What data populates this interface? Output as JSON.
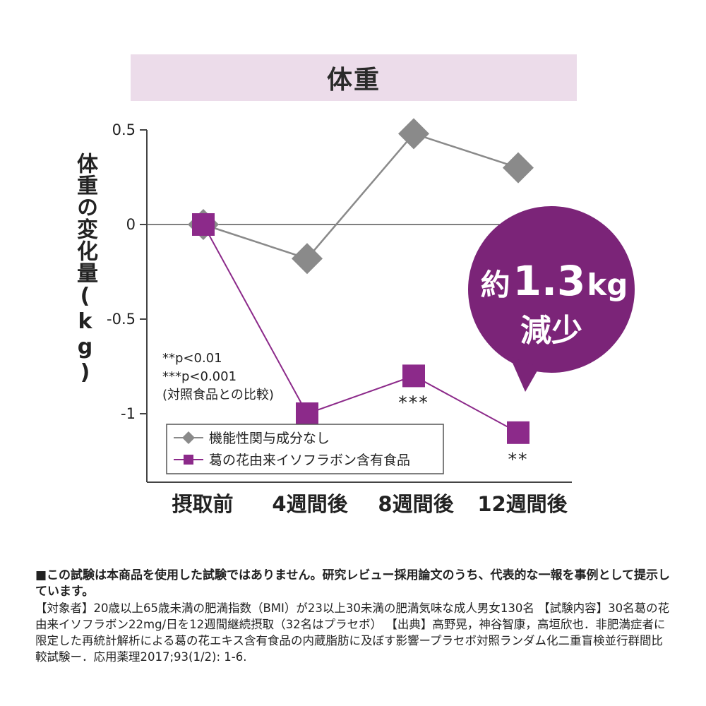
{
  "title": "体重",
  "ylabel": "体重の変化量(kg)",
  "colors": {
    "control": "#8a8a8a",
    "treatment": "#8c2a8a",
    "callout": "#7b2478",
    "title_band": "#ecdcea"
  },
  "chart_data": {
    "type": "line",
    "title": "体重",
    "xlabel": "",
    "ylabel": "体重の変化量(kg)",
    "categories": [
      "摂取前",
      "4週間後",
      "8週間後",
      "12週間後"
    ],
    "ylim": [
      -1.55,
      0.5
    ],
    "yticks": [
      0.5,
      0,
      -0.5,
      -1
    ],
    "ytick_labels": [
      "0.5",
      "0",
      "-0.5",
      "-1"
    ],
    "grid": false,
    "legend_position": "bottom-left",
    "series": [
      {
        "name": "機能性関与成分なし",
        "values": [
          0,
          -0.18,
          0.48,
          0.3
        ],
        "marker": "diamond",
        "color": "#8a8a8a"
      },
      {
        "name": "葛の花由来イソフラボン含有食品",
        "values": [
          0,
          -1.0,
          -0.8,
          -1.1
        ],
        "marker": "square",
        "color": "#8c2a8a"
      }
    ],
    "significance": [
      {
        "category": "4週間後",
        "label": "**"
      },
      {
        "category": "8週間後",
        "label": "***"
      },
      {
        "category": "12週間後",
        "label": "**"
      }
    ],
    "notes": [
      "**p<0.01",
      "***p<0.001",
      "(対照食品との比較)"
    ],
    "callout": {
      "line1_prefix": "約",
      "line1_value": "1.3",
      "line1_unit": "kg",
      "line2": "減少"
    }
  },
  "footnote": {
    "lead": "■この試験は本商品を使用した試験ではありません。研究レビュー採用論文のうち、代表的な一報を事例として提示しています。",
    "body": "【対象者】20歳以上65歳未満の肥満指数（BMI）が23以上30未満の肥満気味な成人男女130名 【試験内容】30名葛の花由来イソフラボン22mg/日を12週間継続摂取（32名はプラセボ） 【出典】高野晃，神谷智康，高垣欣也．非肥満症者に限定した再統計解析による葛の花エキス含有食品の内蔵脂肪に及ぼす影響ープラセボ対照ランダム化二重盲検並行群間比較試験ー．応用薬理2017;93(1/2): 1-6."
  }
}
